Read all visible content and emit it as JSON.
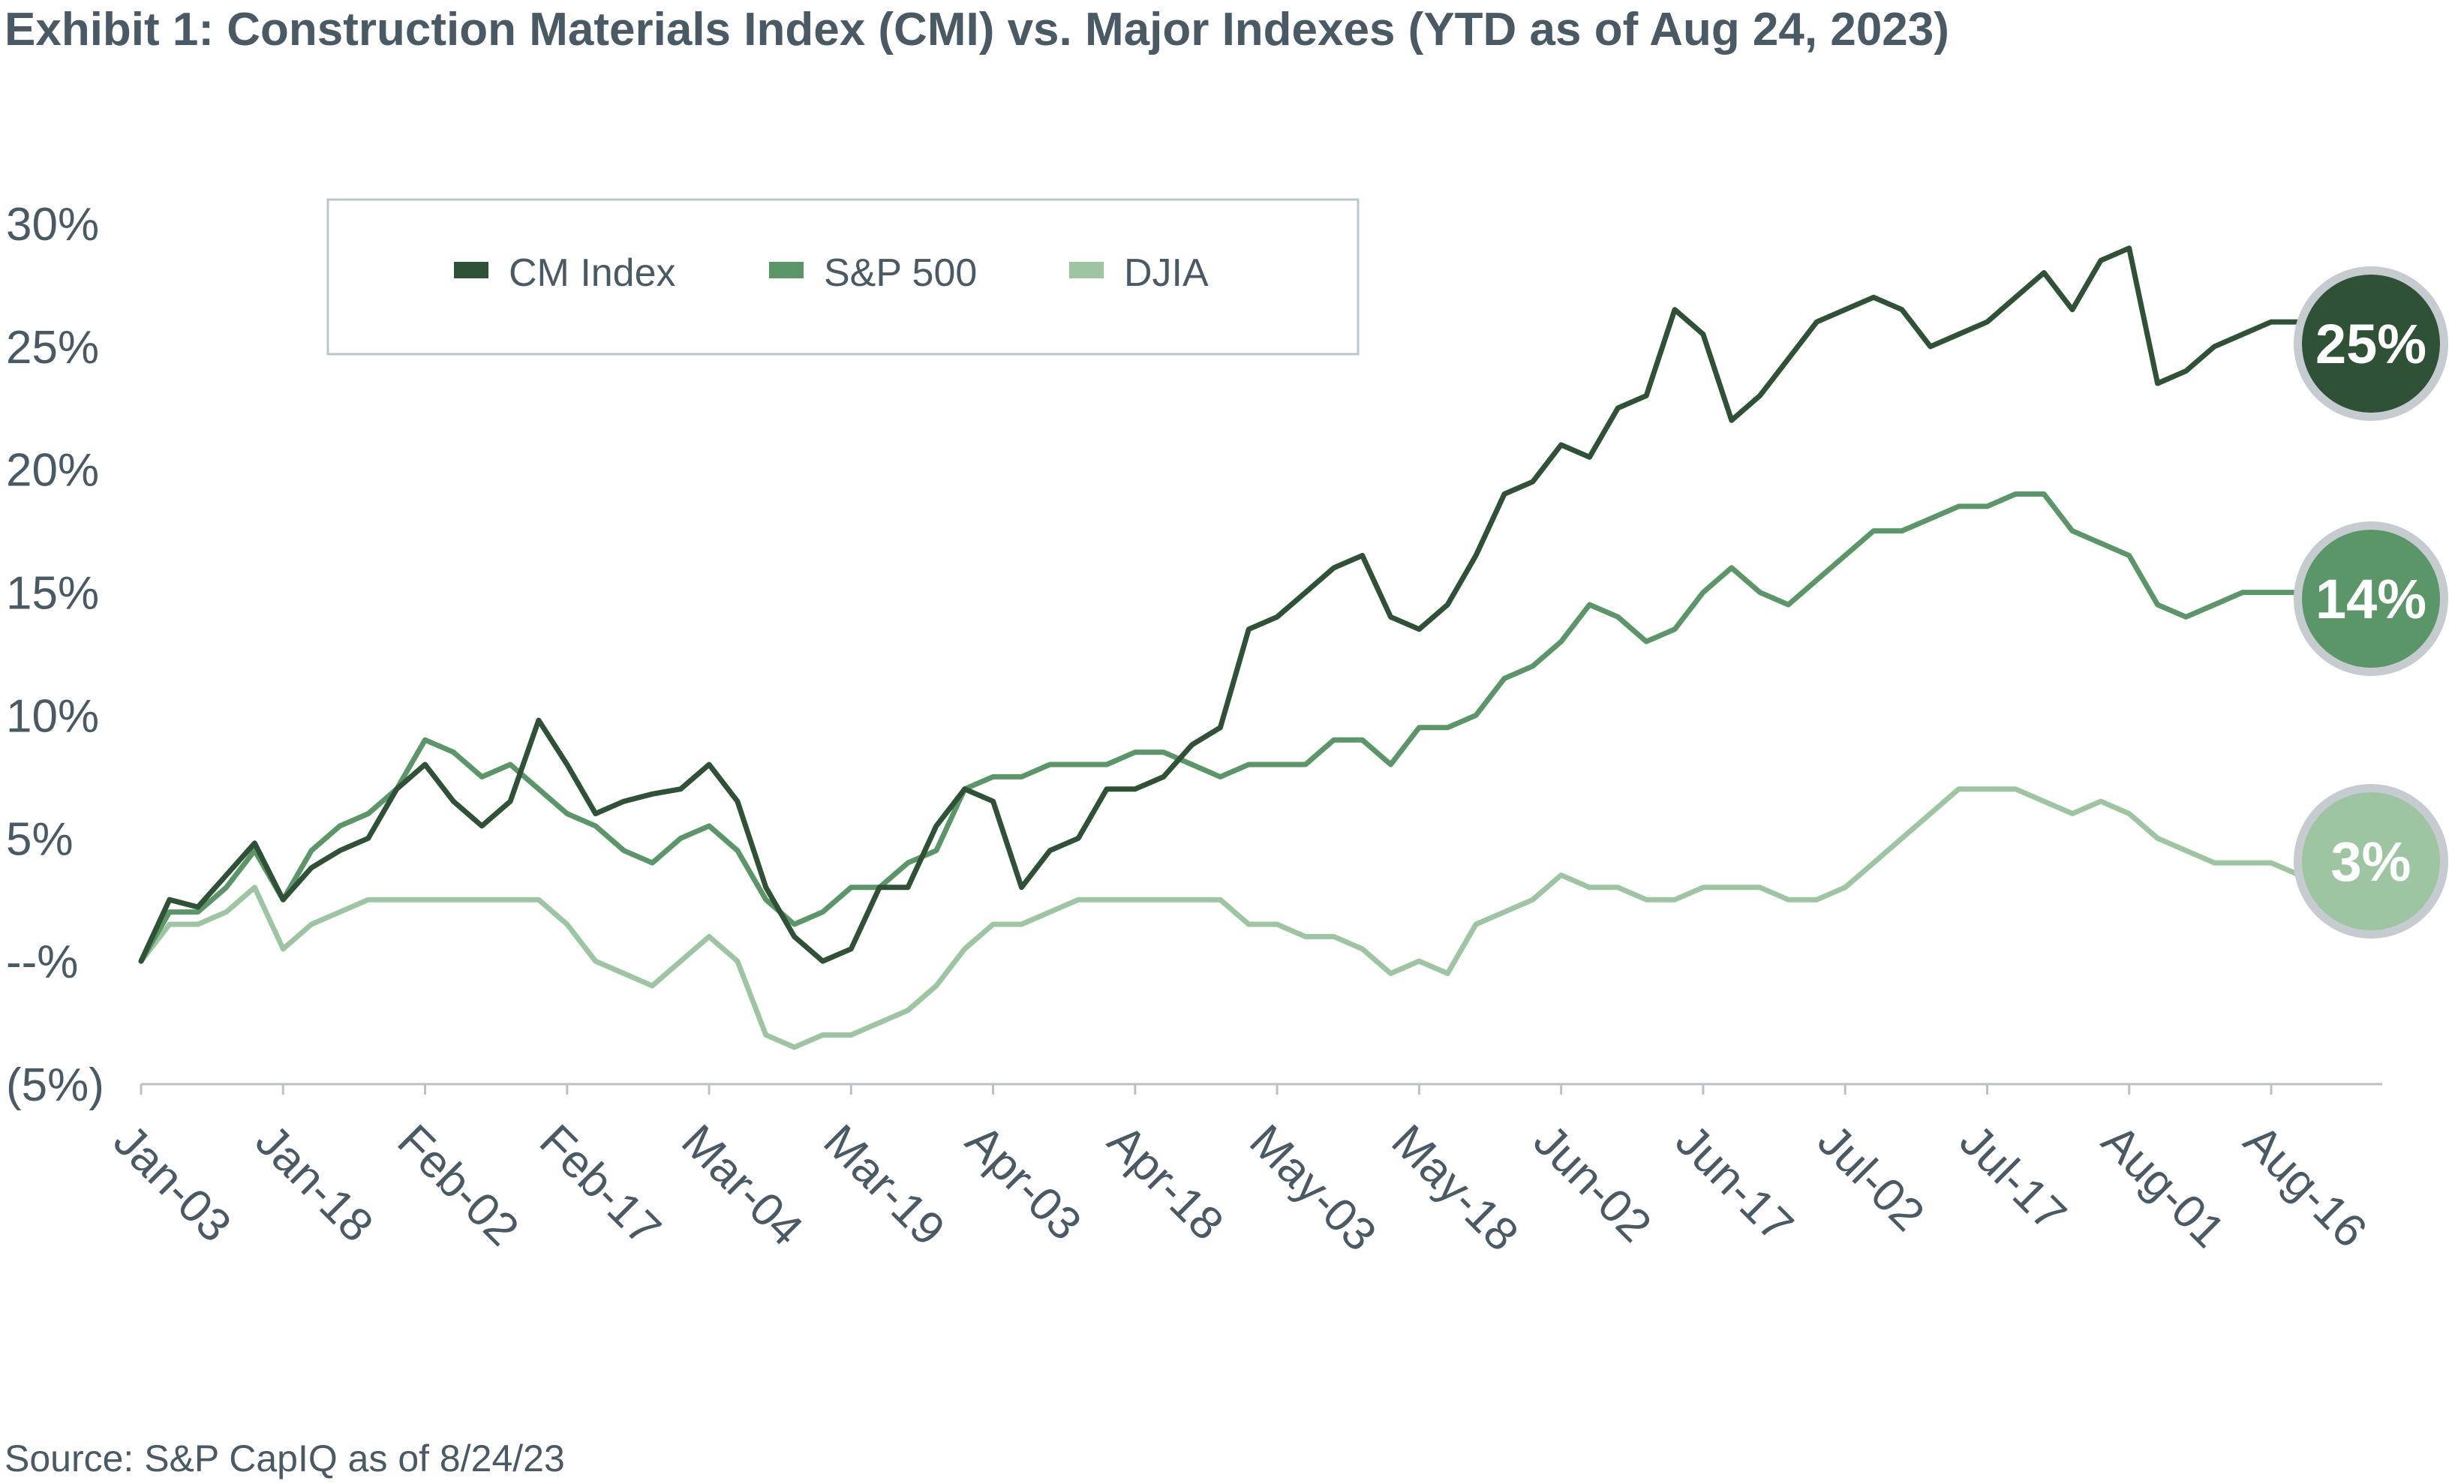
{
  "title": "Exhibit 1: Construction Materials Index (CMI) vs. Major Indexes (YTD as of Aug 24, 2023)",
  "source": "Source: S&P CapIQ as of 8/24/23",
  "chart_data": {
    "type": "line",
    "title": "Exhibit 1: Construction Materials Index (CMI) vs. Major Indexes (YTD as of Aug 24, 2023)",
    "xlabel": "",
    "ylabel": "",
    "ylim": [
      -5,
      30
    ],
    "xlim": [
      "2023-01-03",
      "2023-08-24"
    ],
    "x_tick_labels": [
      "Jan-03",
      "Jan-18",
      "Feb-02",
      "Feb-17",
      "Mar-04",
      "Mar-19",
      "Apr-03",
      "Apr-18",
      "May-03",
      "May-18",
      "Jun-02",
      "Jun-17",
      "Jul-02",
      "Jul-17",
      "Aug-01",
      "Aug-16"
    ],
    "y_ticks": [
      30,
      25,
      20,
      15,
      10,
      5,
      0,
      -5
    ],
    "y_tick_labels": [
      "30%",
      "25%",
      "20%",
      "15%",
      "10%",
      "5%",
      "--%",
      "(5%)"
    ],
    "grid": false,
    "legend_position": "top-left",
    "x": [
      "2023-01-03",
      "2023-01-06",
      "2023-01-09",
      "2023-01-12",
      "2023-01-15",
      "2023-01-18",
      "2023-01-21",
      "2023-01-24",
      "2023-01-27",
      "2023-01-30",
      "2023-02-02",
      "2023-02-05",
      "2023-02-08",
      "2023-02-11",
      "2023-02-14",
      "2023-02-17",
      "2023-02-20",
      "2023-02-23",
      "2023-02-26",
      "2023-03-01",
      "2023-03-04",
      "2023-03-07",
      "2023-03-10",
      "2023-03-13",
      "2023-03-16",
      "2023-03-19",
      "2023-03-22",
      "2023-03-25",
      "2023-03-28",
      "2023-03-31",
      "2023-04-03",
      "2023-04-06",
      "2023-04-09",
      "2023-04-12",
      "2023-04-15",
      "2023-04-18",
      "2023-04-21",
      "2023-04-24",
      "2023-04-27",
      "2023-04-30",
      "2023-05-03",
      "2023-05-06",
      "2023-05-09",
      "2023-05-12",
      "2023-05-15",
      "2023-05-18",
      "2023-05-21",
      "2023-05-24",
      "2023-05-27",
      "2023-05-30",
      "2023-06-02",
      "2023-06-05",
      "2023-06-08",
      "2023-06-11",
      "2023-06-14",
      "2023-06-17",
      "2023-06-20",
      "2023-06-23",
      "2023-06-26",
      "2023-06-29",
      "2023-07-02",
      "2023-07-05",
      "2023-07-08",
      "2023-07-11",
      "2023-07-14",
      "2023-07-17",
      "2023-07-20",
      "2023-07-23",
      "2023-07-26",
      "2023-07-29",
      "2023-08-01",
      "2023-08-04",
      "2023-08-07",
      "2023-08-10",
      "2023-08-13",
      "2023-08-16",
      "2023-08-19",
      "2023-08-22",
      "2023-08-24"
    ],
    "series": [
      {
        "name": "CM Index",
        "color": "#2f5136",
        "values": [
          0.0,
          2.5,
          2.2,
          3.5,
          4.8,
          2.5,
          3.8,
          4.5,
          5.0,
          7.0,
          8.0,
          6.5,
          5.5,
          6.5,
          9.8,
          8.0,
          6.0,
          6.5,
          6.8,
          7.0,
          8.0,
          6.5,
          3.0,
          1.0,
          0.0,
          0.5,
          3.0,
          3.0,
          5.5,
          7.0,
          6.5,
          3.0,
          4.5,
          5.0,
          7.0,
          7.0,
          7.5,
          8.8,
          9.5,
          13.5,
          14.0,
          15.0,
          16.0,
          16.5,
          14.0,
          13.5,
          14.5,
          16.5,
          19.0,
          19.5,
          21.0,
          20.5,
          22.5,
          23.0,
          26.5,
          25.5,
          22.0,
          23.0,
          24.5,
          26.0,
          26.5,
          27.0,
          26.5,
          25.0,
          25.5,
          26.0,
          27.0,
          28.0,
          26.5,
          28.5,
          29.0,
          23.5,
          24.0,
          25.0,
          25.5,
          26.0,
          26.0,
          25.5,
          25.0
        ]
      },
      {
        "name": "S&P 500",
        "color": "#5b9669",
        "values": [
          0.0,
          2.0,
          2.0,
          3.0,
          4.5,
          2.5,
          4.5,
          5.5,
          6.0,
          7.0,
          9.0,
          8.5,
          7.5,
          8.0,
          7.0,
          6.0,
          5.5,
          4.5,
          4.0,
          5.0,
          5.5,
          4.5,
          2.5,
          1.5,
          2.0,
          3.0,
          3.0,
          4.0,
          4.5,
          7.0,
          7.5,
          7.5,
          8.0,
          8.0,
          8.0,
          8.5,
          8.5,
          8.0,
          7.5,
          8.0,
          8.0,
          8.0,
          9.0,
          9.0,
          8.0,
          9.5,
          9.5,
          10.0,
          11.5,
          12.0,
          13.0,
          14.5,
          14.0,
          13.0,
          13.5,
          15.0,
          16.0,
          15.0,
          14.5,
          15.5,
          16.5,
          17.5,
          17.5,
          18.0,
          18.5,
          18.5,
          19.0,
          19.0,
          17.5,
          17.0,
          16.5,
          14.5,
          14.0,
          14.5,
          15.0,
          15.0,
          15.0,
          14.5,
          14.0
        ]
      },
      {
        "name": "DJIA",
        "color": "#9dc5a2",
        "values": [
          0.0,
          1.5,
          1.5,
          2.0,
          3.0,
          0.5,
          1.5,
          2.0,
          2.5,
          2.5,
          2.5,
          2.5,
          2.5,
          2.5,
          2.5,
          1.5,
          0.0,
          -0.5,
          -1.0,
          0.0,
          1.0,
          0.0,
          -3.0,
          -3.5,
          -3.0,
          -3.0,
          -2.5,
          -2.0,
          -1.0,
          0.5,
          1.5,
          1.5,
          2.0,
          2.5,
          2.5,
          2.5,
          2.5,
          2.5,
          2.5,
          1.5,
          1.5,
          1.0,
          1.0,
          0.5,
          -0.5,
          0.0,
          -0.5,
          1.5,
          2.0,
          2.5,
          3.5,
          3.0,
          3.0,
          2.5,
          2.5,
          3.0,
          3.0,
          3.0,
          2.5,
          2.5,
          3.0,
          4.0,
          5.0,
          6.0,
          7.0,
          7.0,
          7.0,
          6.5,
          6.0,
          6.5,
          6.0,
          5.0,
          4.5,
          4.0,
          4.0,
          4.0,
          3.5,
          3.5,
          3.0
        ]
      }
    ],
    "end_labels": [
      {
        "series": "CM Index",
        "label": "25%",
        "color": "#2f5136"
      },
      {
        "series": "S&P 500",
        "label": "14%",
        "color": "#5b9669"
      },
      {
        "series": "DJIA",
        "label": "3%",
        "color": "#9dc5a2"
      }
    ],
    "badge_ring_color": "#c6cbd0",
    "axis_color": "#b8c2c6",
    "legend_border_color": "#b9c6cc"
  }
}
